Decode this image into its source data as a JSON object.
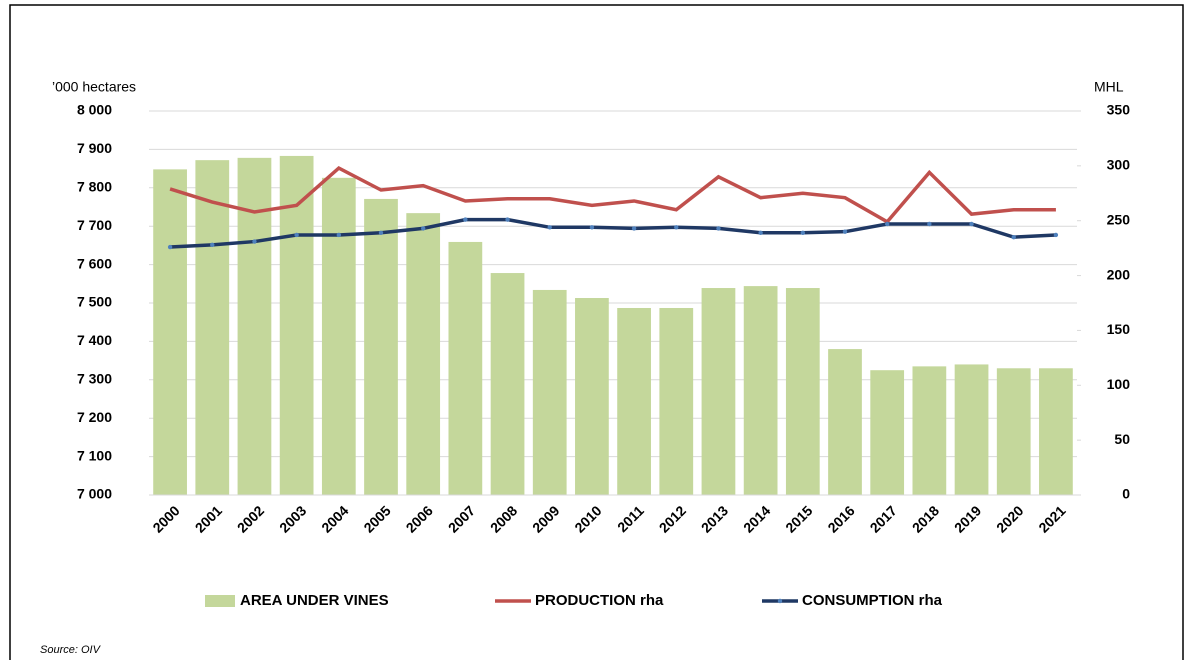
{
  "chart_data": {
    "type": "bar_line",
    "y_label": "’000 hectares",
    "y2_label": "MHL",
    "source": "Source: OIV",
    "categories": [
      "2000",
      "2001",
      "2002",
      "2003",
      "2004",
      "2005",
      "2006",
      "2007",
      "2008",
      "2009",
      "2010",
      "2011",
      "2012",
      "2013",
      "2014",
      "2015",
      "2016",
      "2017",
      "2018",
      "2019",
      "2020",
      "2021"
    ],
    "series": [
      {
        "name": "AREA UNDER VINES",
        "type": "bar",
        "color": "#c4d79b",
        "values": [
          7848,
          7872,
          7878,
          7883,
          7826,
          7771,
          7734,
          7659,
          7578,
          7534,
          7513,
          7487,
          7487,
          7539,
          7544,
          7539,
          7380,
          7325,
          7335,
          7340,
          7330,
          7330
        ]
      },
      {
        "name": "PRODUCTION rha",
        "type": "line",
        "axis": "y2",
        "color": "#c0504d",
        "values": [
          279,
          267,
          258,
          264,
          298,
          278,
          282,
          268,
          270,
          270,
          264,
          268,
          260,
          290,
          271,
          275,
          271,
          249,
          294,
          256,
          260,
          260
        ]
      },
      {
        "name": "CONSUMPTION rha",
        "type": "line",
        "axis": "y2",
        "color": "#1f3864",
        "markers": true,
        "values": [
          226,
          228,
          231,
          237,
          237,
          239,
          243,
          251,
          251,
          244,
          244,
          243,
          244,
          243,
          239,
          239,
          240,
          247,
          247,
          247,
          235,
          237
        ]
      }
    ],
    "ylim": [
      7000,
      8000
    ],
    "yticks": [
      {
        "value": 7000,
        "label": "7 000"
      },
      {
        "value": 7100,
        "label": "7 100"
      },
      {
        "value": 7200,
        "label": "7 200"
      },
      {
        "value": 7300,
        "label": "7 300"
      },
      {
        "value": 7400,
        "label": "7 400"
      },
      {
        "value": 7500,
        "label": "7 500"
      },
      {
        "value": 7600,
        "label": "7 600"
      },
      {
        "value": 7700,
        "label": "7 700"
      },
      {
        "value": 7800,
        "label": "7 800"
      },
      {
        "value": 7900,
        "label": "7 900"
      },
      {
        "value": 8000,
        "label": "8 000"
      }
    ],
    "y2lim": [
      0,
      350
    ],
    "y2ticks": [
      0,
      50,
      100,
      150,
      200,
      250,
      300,
      350
    ],
    "grid": true
  }
}
